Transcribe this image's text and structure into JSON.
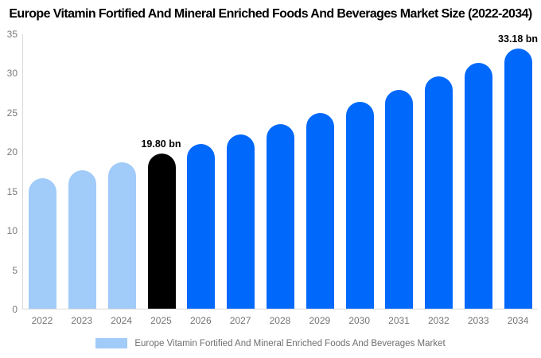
{
  "title": "Europe Vitamin Fortified And Mineral Enriched Foods And Beverages Market Size (2022-2034)",
  "chart_data": {
    "type": "bar",
    "title": "Europe Vitamin Fortified And Mineral Enriched Foods And Beverages Market Size (2022-2034)",
    "categories": [
      "2022",
      "2023",
      "2024",
      "2025",
      "2026",
      "2027",
      "2028",
      "2029",
      "2030",
      "2031",
      "2032",
      "2033",
      "2034"
    ],
    "values": [
      16.67,
      17.65,
      18.7,
      19.8,
      20.97,
      22.21,
      23.52,
      24.91,
      26.38,
      27.94,
      29.59,
      31.33,
      33.18
    ],
    "unit": "bn",
    "bar_colors": [
      "#A1CBF9",
      "#A1CBF9",
      "#A1CBF9",
      "#000000",
      "#0168FC",
      "#0168FC",
      "#0168FC",
      "#0168FC",
      "#0168FC",
      "#0168FC",
      "#0168FC",
      "#0168FC",
      "#0168FC"
    ],
    "annotations": [
      {
        "category": "2025",
        "text": "19.80 bn"
      },
      {
        "category": "2034",
        "text": "33.18 bn"
      }
    ],
    "xlabel": "",
    "ylabel": "",
    "ylim": [
      0,
      35
    ],
    "yticks": [
      0,
      5,
      10,
      15,
      20,
      25,
      30,
      35
    ],
    "grid": false,
    "legend": {
      "position": "bottom",
      "label": "Europe Vitamin Fortified And Mineral Enriched Foods And Beverages Market",
      "swatch_color": "#A1CBF9"
    }
  },
  "colors": {
    "title_text": "#000000",
    "annotation_text": "#000000",
    "axis_line": "#d9d9d9",
    "y_tick_text": "#7a7a7a",
    "x_tick_text": "#757575",
    "legend_text": "#6f6f6f",
    "background": "#ffffff"
  }
}
